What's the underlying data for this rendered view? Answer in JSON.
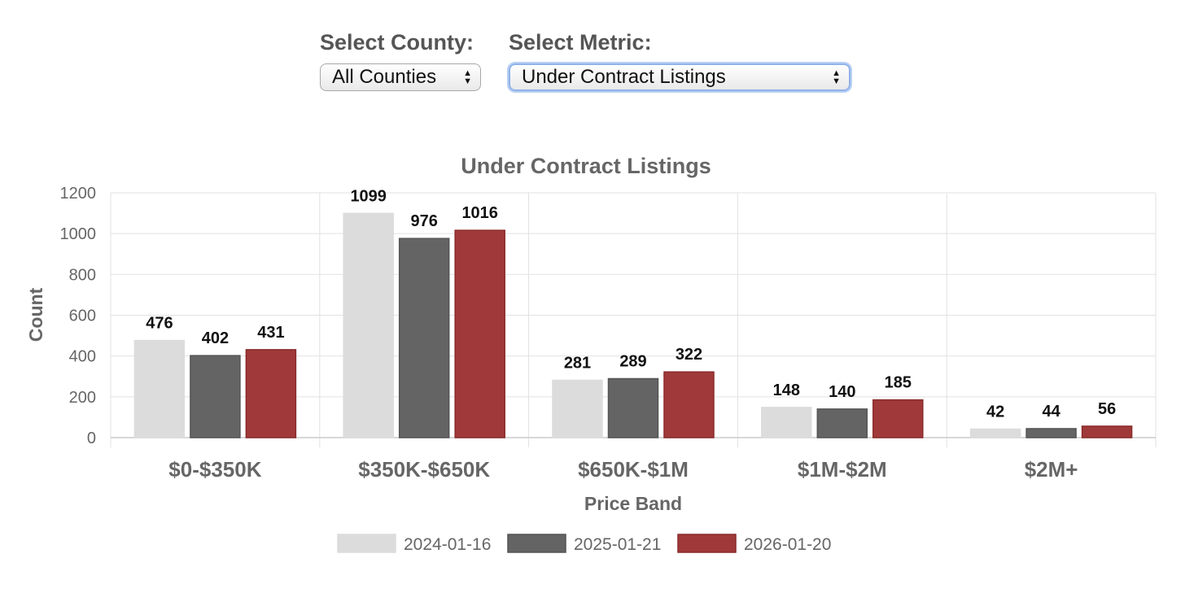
{
  "controls": {
    "county_label": "Select County:",
    "county_value": "All Counties",
    "metric_label": "Select Metric:",
    "metric_value": "Under Contract Listings"
  },
  "colors": {
    "series": [
      "#dcdcdc",
      "#646464",
      "#a03a3a"
    ],
    "series_border": [
      "#dcdcdc",
      "#555555",
      "#8a2a2a"
    ],
    "grid": "#e2e2e2",
    "axis_text": "#666666",
    "title_text": "#666666",
    "label_text": "#111111"
  },
  "chart_data": {
    "type": "bar",
    "title": "Under Contract Listings",
    "xlabel": "Price Band",
    "ylabel": "Count",
    "ylim": [
      0,
      1200
    ],
    "yticks": [
      0,
      200,
      400,
      600,
      800,
      1000,
      1200
    ],
    "categories": [
      "$0-$350K",
      "$350K-$650K",
      "$650K-$1M",
      "$1M-$2M",
      "$2M+"
    ],
    "series": [
      {
        "name": "2024-01-16",
        "values": [
          476,
          1099,
          281,
          148,
          42
        ]
      },
      {
        "name": "2025-01-21",
        "values": [
          402,
          976,
          289,
          140,
          44
        ]
      },
      {
        "name": "2026-01-20",
        "values": [
          431,
          1016,
          322,
          185,
          56
        ]
      }
    ],
    "grid": true,
    "legend_position": "bottom-center"
  }
}
